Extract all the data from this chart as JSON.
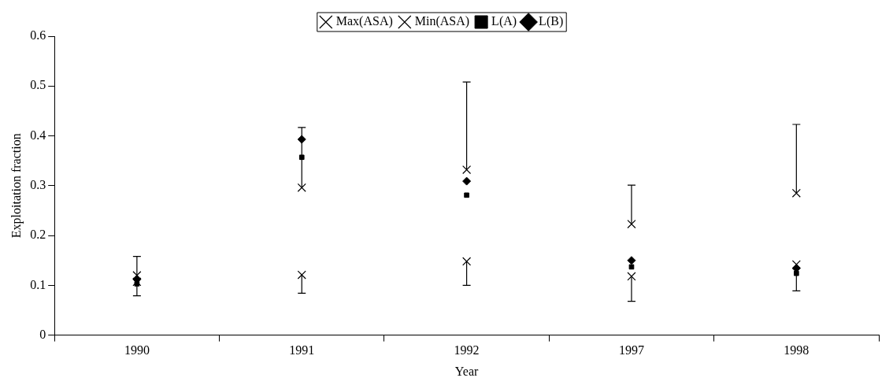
{
  "chart_data": {
    "type": "scatter",
    "xlabel": "Year",
    "ylabel": "Exploitation fraction",
    "categories": [
      "1990",
      "1991",
      "1992",
      "1997",
      "1998"
    ],
    "series": [
      {
        "name": "Max(ASA)",
        "color": "#000000",
        "marker": "cross",
        "values": [
          0.12,
          0.296,
          0.332,
          0.223,
          0.285
        ],
        "errors": [
          [
            0.12,
            0.158
          ],
          [
            0.296,
            0.417
          ],
          [
            0.332,
            0.508
          ],
          [
            0.223,
            0.301
          ],
          [
            0.285,
            0.423
          ]
        ]
      },
      {
        "name": "Min(ASA)",
        "color": "#000000",
        "marker": "cross",
        "values": [
          0.107,
          0.121,
          0.148,
          0.118,
          0.142
        ],
        "errors": [
          [
            0.079,
            0.107
          ],
          [
            0.084,
            0.121
          ],
          [
            0.1,
            0.148
          ],
          [
            0.068,
            0.118
          ],
          [
            0.089,
            0.142
          ]
        ]
      },
      {
        "name": "L(A)",
        "color": "#000000",
        "marker": "square",
        "values": [
          0.103,
          0.357,
          0.281,
          0.137,
          0.124
        ]
      },
      {
        "name": "L(B)",
        "color": "#000000",
        "marker": "diamond",
        "values": [
          0.112,
          0.393,
          0.309,
          0.15,
          0.134
        ]
      }
    ],
    "ylim": [
      0,
      0.6
    ],
    "yticks": [
      0,
      0.1,
      0.2,
      0.3,
      0.4,
      0.5,
      0.6
    ],
    "grid": false,
    "legend": "top"
  }
}
